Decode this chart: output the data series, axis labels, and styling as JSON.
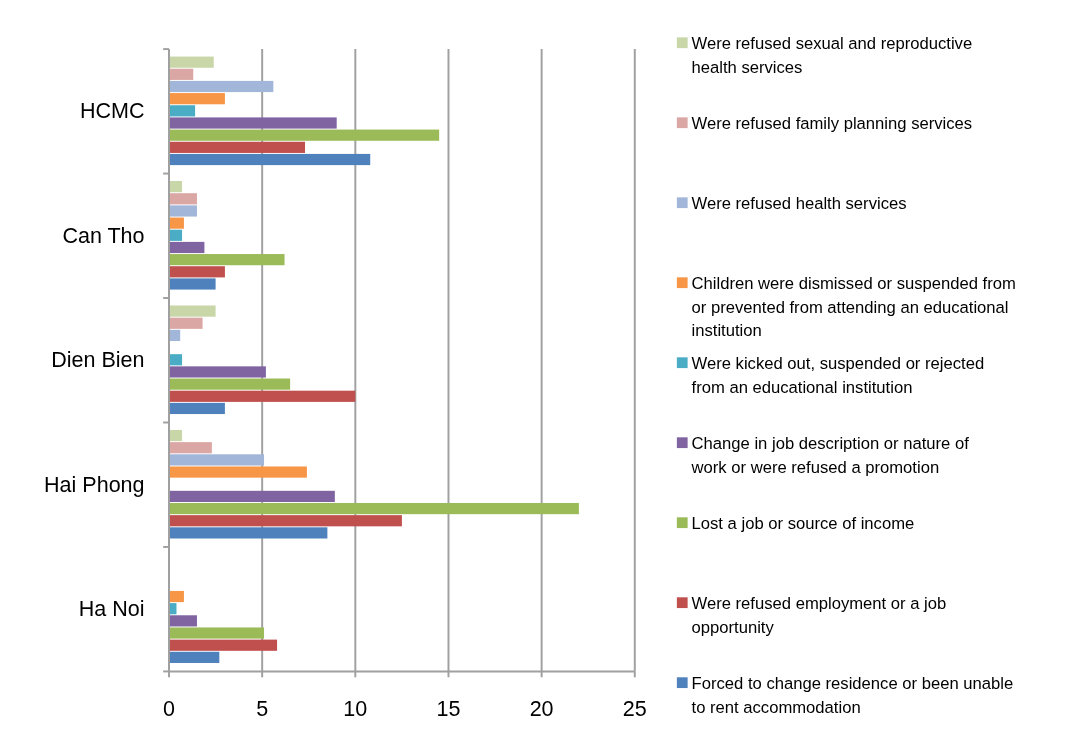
{
  "chart_data": {
    "type": "bar",
    "orientation": "horizontal",
    "categories": [
      "HCMC",
      "Can Tho",
      "Dien Bien",
      "Hai Phong",
      "Ha Noi"
    ],
    "series": [
      {
        "name": "Forced to change residence or been unable to rent accommodation",
        "color": "#4f81bd",
        "values": [
          10.8,
          2.5,
          3.0,
          8.5,
          2.7
        ]
      },
      {
        "name": "Were refused employment or a job opportunity",
        "color": "#c0504d",
        "values": [
          7.3,
          3.0,
          10.0,
          12.5,
          5.8
        ]
      },
      {
        "name": "Lost a job or source of income",
        "color": "#9bbb59",
        "values": [
          14.5,
          6.2,
          6.5,
          22.0,
          5.1
        ]
      },
      {
        "name": "Change in job description or nature of work or were refused a promotion",
        "color": "#8064a2",
        "values": [
          9.0,
          1.9,
          5.2,
          8.9,
          1.5
        ]
      },
      {
        "name": "Were kicked out, suspended or rejected from an educational institution",
        "color": "#4bacc6",
        "values": [
          1.4,
          0.7,
          0.7,
          0,
          0.4
        ]
      },
      {
        "name": "Children were dismissed or suspended from or prevented from attending an educational institution",
        "color": "#f79646",
        "values": [
          3.0,
          0.8,
          0,
          7.4,
          0.8
        ]
      },
      {
        "name": "Were refused health services",
        "color": "#a2b6d9",
        "values": [
          5.6,
          1.5,
          0.6,
          5.1,
          0
        ]
      },
      {
        "name": "Were refused family planning services",
        "color": "#dba7a5",
        "values": [
          1.3,
          1.5,
          1.8,
          2.3,
          0
        ]
      },
      {
        "name": "Were refused sexual and reproductive health services",
        "color": "#c8d6a8",
        "values": [
          2.4,
          0.7,
          2.5,
          0.7,
          0
        ]
      }
    ],
    "xlim": [
      0,
      25
    ],
    "xticks": [
      0,
      5,
      10,
      15,
      20,
      25
    ],
    "grid": "x",
    "legend": "right"
  }
}
